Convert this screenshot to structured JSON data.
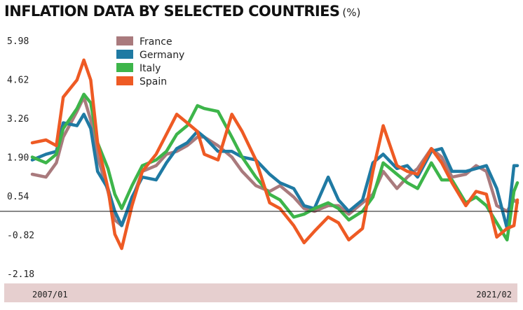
{
  "chart_data": {
    "type": "line",
    "title": "INFLATION DATA BY SELECTED COUNTRIES",
    "unit": "(%)",
    "yticks": [
      "5.98",
      "4.62",
      "3.26",
      "1.90",
      "0.54",
      "-0.82",
      "-2.18"
    ],
    "ylim": [
      -2.18,
      5.98
    ],
    "xlim": [
      "2007/01",
      "2021/02"
    ],
    "xticks": [
      "2007/01",
      "2021/02"
    ],
    "grid": false,
    "legend_position": "top-left",
    "zero_line": true,
    "series": [
      {
        "name": "France",
        "color": "#a97a7d",
        "values": [
          [
            2007.0,
            1.3
          ],
          [
            2007.4,
            1.2
          ],
          [
            2007.7,
            1.7
          ],
          [
            2007.9,
            2.6
          ],
          [
            2008.3,
            3.5
          ],
          [
            2008.5,
            4.0
          ],
          [
            2008.7,
            3.2
          ],
          [
            2008.9,
            1.9
          ],
          [
            2009.2,
            0.7
          ],
          [
            2009.4,
            -0.3
          ],
          [
            2009.6,
            -0.5
          ],
          [
            2009.9,
            0.4
          ],
          [
            2010.2,
            1.4
          ],
          [
            2010.6,
            1.6
          ],
          [
            2010.9,
            2.0
          ],
          [
            2011.2,
            2.1
          ],
          [
            2011.5,
            2.3
          ],
          [
            2011.8,
            2.6
          ],
          [
            2012.0,
            2.6
          ],
          [
            2012.4,
            2.3
          ],
          [
            2012.8,
            1.9
          ],
          [
            2013.1,
            1.4
          ],
          [
            2013.5,
            0.9
          ],
          [
            2013.9,
            0.7
          ],
          [
            2014.2,
            0.9
          ],
          [
            2014.6,
            0.5
          ],
          [
            2014.9,
            0.1
          ],
          [
            2015.2,
            0.0
          ],
          [
            2015.6,
            0.2
          ],
          [
            2015.9,
            0.2
          ],
          [
            2016.2,
            -0.1
          ],
          [
            2016.6,
            0.3
          ],
          [
            2016.9,
            0.6
          ],
          [
            2017.2,
            1.4
          ],
          [
            2017.6,
            0.8
          ],
          [
            2017.9,
            1.2
          ],
          [
            2018.2,
            1.5
          ],
          [
            2018.6,
            2.2
          ],
          [
            2018.9,
            1.9
          ],
          [
            2019.2,
            1.2
          ],
          [
            2019.6,
            1.3
          ],
          [
            2019.9,
            1.6
          ],
          [
            2020.2,
            1.4
          ],
          [
            2020.5,
            0.2
          ],
          [
            2020.8,
            0.0
          ],
          [
            2021.0,
            0.4
          ],
          [
            2021.1,
            0.3
          ]
        ]
      },
      {
        "name": "Germany",
        "color": "#1f7aa3",
        "values": [
          [
            2007.0,
            1.8
          ],
          [
            2007.4,
            2.0
          ],
          [
            2007.7,
            2.1
          ],
          [
            2007.9,
            3.1
          ],
          [
            2008.3,
            3.0
          ],
          [
            2008.5,
            3.4
          ],
          [
            2008.7,
            2.9
          ],
          [
            2008.9,
            1.4
          ],
          [
            2009.2,
            0.8
          ],
          [
            2009.4,
            0.0
          ],
          [
            2009.6,
            -0.5
          ],
          [
            2009.9,
            0.5
          ],
          [
            2010.2,
            1.2
          ],
          [
            2010.6,
            1.1
          ],
          [
            2010.9,
            1.7
          ],
          [
            2011.2,
            2.2
          ],
          [
            2011.5,
            2.4
          ],
          [
            2011.8,
            2.8
          ],
          [
            2012.0,
            2.6
          ],
          [
            2012.4,
            2.1
          ],
          [
            2012.8,
            2.1
          ],
          [
            2013.1,
            1.9
          ],
          [
            2013.5,
            1.8
          ],
          [
            2013.9,
            1.3
          ],
          [
            2014.2,
            1.0
          ],
          [
            2014.6,
            0.8
          ],
          [
            2014.9,
            0.2
          ],
          [
            2015.2,
            0.1
          ],
          [
            2015.6,
            1.2
          ],
          [
            2015.9,
            0.4
          ],
          [
            2016.2,
            0.0
          ],
          [
            2016.6,
            0.4
          ],
          [
            2016.9,
            1.7
          ],
          [
            2017.2,
            2.0
          ],
          [
            2017.6,
            1.5
          ],
          [
            2017.9,
            1.6
          ],
          [
            2018.2,
            1.2
          ],
          [
            2018.6,
            2.1
          ],
          [
            2018.9,
            2.2
          ],
          [
            2019.2,
            1.4
          ],
          [
            2019.6,
            1.4
          ],
          [
            2019.9,
            1.5
          ],
          [
            2020.2,
            1.6
          ],
          [
            2020.5,
            0.8
          ],
          [
            2020.8,
            -0.6
          ],
          [
            2021.0,
            1.6
          ],
          [
            2021.1,
            1.6
          ]
        ]
      },
      {
        "name": "Italy",
        "color": "#3db54a",
        "values": [
          [
            2007.0,
            1.9
          ],
          [
            2007.4,
            1.7
          ],
          [
            2007.7,
            2.0
          ],
          [
            2007.9,
            2.9
          ],
          [
            2008.3,
            3.6
          ],
          [
            2008.5,
            4.1
          ],
          [
            2008.7,
            3.8
          ],
          [
            2008.9,
            2.4
          ],
          [
            2009.2,
            1.5
          ],
          [
            2009.4,
            0.6
          ],
          [
            2009.6,
            0.1
          ],
          [
            2009.9,
            0.9
          ],
          [
            2010.2,
            1.6
          ],
          [
            2010.6,
            1.8
          ],
          [
            2010.9,
            2.1
          ],
          [
            2011.2,
            2.7
          ],
          [
            2011.5,
            3.0
          ],
          [
            2011.8,
            3.7
          ],
          [
            2012.0,
            3.6
          ],
          [
            2012.4,
            3.5
          ],
          [
            2012.8,
            2.6
          ],
          [
            2013.1,
            1.9
          ],
          [
            2013.5,
            1.2
          ],
          [
            2013.9,
            0.6
          ],
          [
            2014.2,
            0.4
          ],
          [
            2014.6,
            -0.2
          ],
          [
            2014.9,
            -0.1
          ],
          [
            2015.2,
            0.1
          ],
          [
            2015.6,
            0.3
          ],
          [
            2015.9,
            0.1
          ],
          [
            2016.2,
            -0.3
          ],
          [
            2016.6,
            0.0
          ],
          [
            2016.9,
            0.5
          ],
          [
            2017.2,
            1.7
          ],
          [
            2017.6,
            1.3
          ],
          [
            2017.9,
            1.0
          ],
          [
            2018.2,
            0.8
          ],
          [
            2018.6,
            1.7
          ],
          [
            2018.9,
            1.1
          ],
          [
            2019.2,
            1.1
          ],
          [
            2019.6,
            0.3
          ],
          [
            2019.9,
            0.5
          ],
          [
            2020.2,
            0.2
          ],
          [
            2020.5,
            -0.4
          ],
          [
            2020.8,
            -1.0
          ],
          [
            2021.0,
            0.7
          ],
          [
            2021.1,
            1.0
          ]
        ]
      },
      {
        "name": "Spain",
        "color": "#ee5a24",
        "values": [
          [
            2007.0,
            2.4
          ],
          [
            2007.4,
            2.5
          ],
          [
            2007.7,
            2.3
          ],
          [
            2007.9,
            4.0
          ],
          [
            2008.3,
            4.6
          ],
          [
            2008.5,
            5.3
          ],
          [
            2008.7,
            4.6
          ],
          [
            2008.9,
            2.4
          ],
          [
            2009.2,
            0.8
          ],
          [
            2009.4,
            -0.8
          ],
          [
            2009.6,
            -1.3
          ],
          [
            2009.9,
            0.2
          ],
          [
            2010.2,
            1.4
          ],
          [
            2010.6,
            2.0
          ],
          [
            2010.9,
            2.7
          ],
          [
            2011.2,
            3.4
          ],
          [
            2011.5,
            3.1
          ],
          [
            2011.8,
            2.8
          ],
          [
            2012.0,
            2.0
          ],
          [
            2012.4,
            1.8
          ],
          [
            2012.8,
            3.4
          ],
          [
            2013.1,
            2.8
          ],
          [
            2013.5,
            1.8
          ],
          [
            2013.9,
            0.3
          ],
          [
            2014.2,
            0.1
          ],
          [
            2014.6,
            -0.5
          ],
          [
            2014.9,
            -1.1
          ],
          [
            2015.2,
            -0.7
          ],
          [
            2015.6,
            -0.2
          ],
          [
            2015.9,
            -0.4
          ],
          [
            2016.2,
            -1.0
          ],
          [
            2016.6,
            -0.6
          ],
          [
            2016.9,
            1.4
          ],
          [
            2017.2,
            3.0
          ],
          [
            2017.6,
            1.6
          ],
          [
            2017.9,
            1.4
          ],
          [
            2018.2,
            1.3
          ],
          [
            2018.6,
            2.2
          ],
          [
            2018.9,
            1.7
          ],
          [
            2019.2,
            1.0
          ],
          [
            2019.6,
            0.2
          ],
          [
            2019.9,
            0.7
          ],
          [
            2020.2,
            0.6
          ],
          [
            2020.5,
            -0.9
          ],
          [
            2020.8,
            -0.6
          ],
          [
            2021.0,
            -0.5
          ],
          [
            2021.1,
            0.4
          ]
        ]
      }
    ]
  },
  "ui": {
    "band_color": "#e6cfcf",
    "axis_color": "#111111"
  }
}
